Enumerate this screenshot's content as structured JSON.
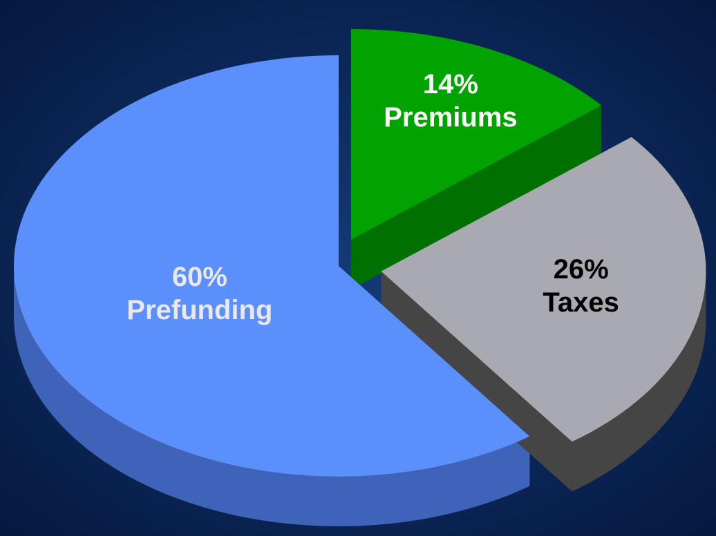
{
  "chart_data": {
    "type": "pie3d",
    "categories": [
      "Prefunding",
      "Premiums",
      "Taxes"
    ],
    "values": [
      60,
      14,
      26
    ],
    "value_labels": [
      "60%",
      "14%",
      "26%"
    ],
    "colors": [
      "#5b8ffb",
      "#00a300",
      "#a9a9b1"
    ],
    "side_colors": [
      "#3f63b8",
      "#007000",
      "#454545"
    ],
    "label_colors": [
      "#e8e8ee",
      "#ffffff",
      "#000000"
    ]
  }
}
